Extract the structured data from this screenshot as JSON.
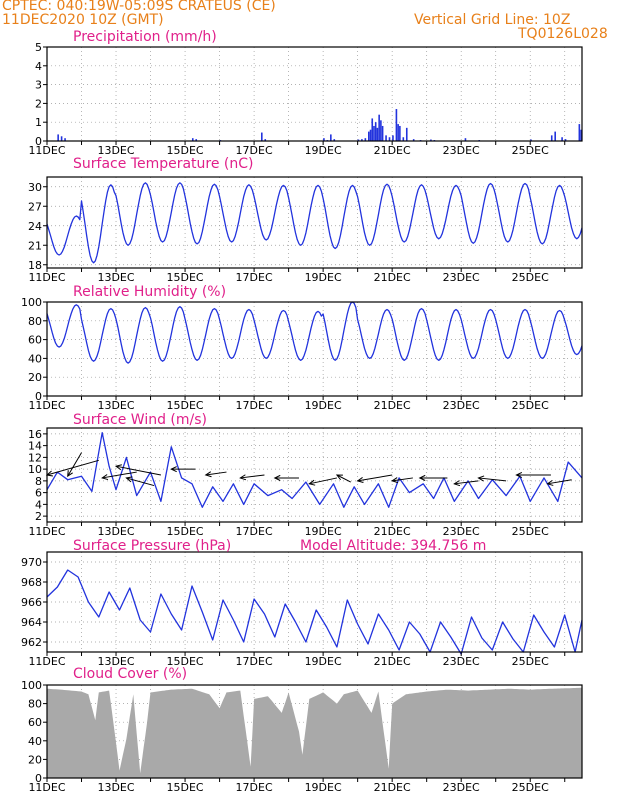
{
  "header": {
    "line1": "CPTEC:  040:19W-05:09S   CRATEUS (CE)",
    "line2": "11DEC2020 10Z (GMT)",
    "grid_note": "Vertical Grid Line: 10Z",
    "code": "TQ0126L028",
    "model_altitude": "Model Altitude: 394.756 m"
  },
  "colors": {
    "header": "#e8801a",
    "title": "#e0208a",
    "series": "#2233dd",
    "cloud": "#a9a9a9",
    "grid": "#999999"
  },
  "chart_data": [
    {
      "type": "bar",
      "title": "Precipitation (mm/h)",
      "ylim": [
        0,
        5
      ],
      "yticks": [
        0,
        1,
        2,
        3,
        4,
        5
      ],
      "x_range_days": [
        11,
        26.5
      ],
      "xticks": [
        "11DEC",
        "13DEC",
        "15DEC",
        "17DEC",
        "19DEC",
        "21DEC",
        "23DEC",
        "25DEC"
      ],
      "bars": [
        [
          11.3,
          0.35
        ],
        [
          11.4,
          0.25
        ],
        [
          11.5,
          0.15
        ],
        [
          15.2,
          0.15
        ],
        [
          15.3,
          0.1
        ],
        [
          16.0,
          0.05
        ],
        [
          17.2,
          0.45
        ],
        [
          17.3,
          0.1
        ],
        [
          19.0,
          0.15
        ],
        [
          19.1,
          0.05
        ],
        [
          19.2,
          0.35
        ],
        [
          19.3,
          0.1
        ],
        [
          20.0,
          0.08
        ],
        [
          20.1,
          0.1
        ],
        [
          20.2,
          0.15
        ],
        [
          20.3,
          0.5
        ],
        [
          20.35,
          0.6
        ],
        [
          20.4,
          1.2
        ],
        [
          20.45,
          0.8
        ],
        [
          20.5,
          1.0
        ],
        [
          20.55,
          0.7
        ],
        [
          20.6,
          1.4
        ],
        [
          20.65,
          1.1
        ],
        [
          20.7,
          0.8
        ],
        [
          20.8,
          0.3
        ],
        [
          20.9,
          0.2
        ],
        [
          21.0,
          0.3
        ],
        [
          21.1,
          1.7
        ],
        [
          21.15,
          0.9
        ],
        [
          21.2,
          0.8
        ],
        [
          21.3,
          0.2
        ],
        [
          21.4,
          0.7
        ],
        [
          21.6,
          0.1
        ],
        [
          21.8,
          0.05
        ],
        [
          22.1,
          0.08
        ],
        [
          22.2,
          0.05
        ],
        [
          23.1,
          0.15
        ],
        [
          23.5,
          0.05
        ],
        [
          25.0,
          0.08
        ],
        [
          25.6,
          0.3
        ],
        [
          25.7,
          0.5
        ],
        [
          25.9,
          0.2
        ],
        [
          26.0,
          0.1
        ],
        [
          26.4,
          0.9
        ],
        [
          26.45,
          0.6
        ]
      ]
    },
    {
      "type": "line",
      "title": "Surface Temperature (nC)",
      "ylim": [
        17.5,
        31.5
      ],
      "yticks": [
        18,
        21,
        24,
        27,
        30
      ],
      "x_range_days": [
        11,
        26.5
      ],
      "xticks": [
        "11DEC",
        "13DEC",
        "15DEC",
        "17DEC",
        "19DEC",
        "21DEC",
        "23DEC",
        "25DEC"
      ],
      "pattern": {
        "mean": 25.4,
        "amplitude": 4.9,
        "min_values_per_day": [
          19.5,
          18.3,
          21.0,
          21.5,
          21.2,
          21.5,
          21.8,
          21.0,
          20.5,
          21.0,
          21.5,
          22.0,
          21.3,
          21.5,
          21.2,
          22.0
        ],
        "max_values_per_day": [
          25.5,
          30.3,
          30.6,
          30.6,
          30.4,
          30.3,
          30.2,
          30.2,
          30.2,
          30.4,
          30.3,
          30.2,
          30.5,
          30.5,
          30.2,
          30.2
        ]
      }
    },
    {
      "type": "line",
      "title": "Relative Humidity (%)",
      "ylim": [
        0,
        100
      ],
      "yticks": [
        0,
        20,
        40,
        60,
        80,
        100
      ],
      "x_range_days": [
        11,
        26.5
      ],
      "xticks": [
        "11DEC",
        "13DEC",
        "15DEC",
        "17DEC",
        "19DEC",
        "21DEC",
        "23DEC",
        "25DEC"
      ],
      "pattern": {
        "max_values_per_day": [
          97,
          93,
          94,
          95,
          93,
          92,
          91,
          90,
          100,
          92,
          93,
          92,
          92,
          92,
          91,
          90
        ],
        "min_values_per_day": [
          52,
          37,
          35,
          37,
          38,
          40,
          40,
          38,
          38,
          40,
          38,
          38,
          40,
          40,
          40,
          44
        ]
      }
    },
    {
      "type": "line",
      "title": "Surface Wind (m/s)",
      "ylim": [
        1,
        17
      ],
      "yticks": [
        2,
        4,
        6,
        8,
        10,
        12,
        14,
        16
      ],
      "x_range_days": [
        11,
        26.5
      ],
      "xticks": [
        "11DEC",
        "13DEC",
        "15DEC",
        "17DEC",
        "19DEC",
        "21DEC",
        "23DEC",
        "25DEC"
      ],
      "speed_points": [
        [
          11.0,
          6.5
        ],
        [
          11.3,
          9.5
        ],
        [
          11.6,
          8.2
        ],
        [
          12.0,
          8.8
        ],
        [
          12.3,
          6.2
        ],
        [
          12.6,
          16.2
        ],
        [
          12.8,
          10.5
        ],
        [
          13.0,
          6.5
        ],
        [
          13.3,
          12.0
        ],
        [
          13.6,
          5.5
        ],
        [
          14.0,
          9.5
        ],
        [
          14.3,
          4.5
        ],
        [
          14.6,
          13.8
        ],
        [
          14.9,
          8.5
        ],
        [
          15.2,
          7.5
        ],
        [
          15.5,
          3.5
        ],
        [
          15.8,
          7.0
        ],
        [
          16.1,
          4.5
        ],
        [
          16.4,
          7.5
        ],
        [
          16.7,
          4.0
        ],
        [
          17.0,
          7.5
        ],
        [
          17.4,
          5.5
        ],
        [
          17.8,
          6.5
        ],
        [
          18.1,
          5.0
        ],
        [
          18.5,
          7.8
        ],
        [
          18.9,
          4.0
        ],
        [
          19.3,
          7.5
        ],
        [
          19.6,
          3.5
        ],
        [
          19.9,
          7.0
        ],
        [
          20.2,
          4.0
        ],
        [
          20.6,
          7.5
        ],
        [
          20.9,
          3.5
        ],
        [
          21.2,
          8.5
        ],
        [
          21.5,
          6.0
        ],
        [
          21.9,
          7.5
        ],
        [
          22.2,
          5.0
        ],
        [
          22.5,
          8.5
        ],
        [
          22.8,
          4.5
        ],
        [
          23.2,
          8.0
        ],
        [
          23.5,
          5.0
        ],
        [
          23.9,
          8.2
        ],
        [
          24.3,
          5.5
        ],
        [
          24.7,
          8.8
        ],
        [
          25.0,
          4.5
        ],
        [
          25.4,
          8.5
        ],
        [
          25.8,
          4.5
        ],
        [
          26.1,
          11.2
        ],
        [
          26.5,
          8.5
        ]
      ],
      "vectors": [
        [
          11.0,
          9.0,
          12.5,
          11.5
        ],
        [
          11.6,
          8.8,
          12.0,
          12.8
        ],
        [
          12.6,
          8.5,
          13.6,
          9.5
        ],
        [
          13.0,
          10.5,
          14.3,
          9.0
        ],
        [
          13.3,
          8.5,
          14.1,
          7.2
        ],
        [
          14.6,
          10.0,
          15.3,
          10.0
        ],
        [
          15.6,
          9.0,
          16.2,
          9.5
        ],
        [
          16.6,
          8.5,
          17.3,
          9.0
        ],
        [
          17.6,
          8.5,
          18.3,
          8.5
        ],
        [
          18.6,
          7.5,
          19.4,
          8.5
        ],
        [
          19.4,
          9.0,
          19.8,
          7.8
        ],
        [
          20.0,
          8.0,
          21.0,
          9.0
        ],
        [
          21.0,
          8.0,
          21.6,
          8.5
        ],
        [
          21.8,
          8.5,
          22.6,
          8.5
        ],
        [
          22.8,
          7.5,
          23.5,
          8.0
        ],
        [
          23.5,
          8.5,
          24.3,
          8.0
        ],
        [
          24.6,
          9.0,
          25.6,
          9.0
        ],
        [
          25.5,
          7.5,
          26.2,
          8.2
        ]
      ]
    },
    {
      "type": "line",
      "title": "Surface Pressure (hPa)",
      "ylim": [
        961,
        971
      ],
      "yticks": [
        962,
        964,
        966,
        968,
        970
      ],
      "x_range_days": [
        11,
        26.5
      ],
      "xticks": [
        "11DEC",
        "13DEC",
        "15DEC",
        "17DEC",
        "19DEC",
        "21DEC",
        "23DEC",
        "25DEC"
      ],
      "points": [
        [
          11.0,
          966.5
        ],
        [
          11.3,
          967.5
        ],
        [
          11.6,
          969.2
        ],
        [
          11.9,
          968.5
        ],
        [
          12.2,
          966.0
        ],
        [
          12.5,
          964.5
        ],
        [
          12.8,
          967.0
        ],
        [
          13.1,
          965.2
        ],
        [
          13.4,
          967.4
        ],
        [
          13.7,
          964.2
        ],
        [
          14.0,
          963.0
        ],
        [
          14.3,
          966.8
        ],
        [
          14.6,
          964.8
        ],
        [
          14.9,
          963.2
        ],
        [
          15.2,
          967.6
        ],
        [
          15.5,
          965.0
        ],
        [
          15.8,
          962.2
        ],
        [
          16.1,
          966.2
        ],
        [
          16.4,
          964.2
        ],
        [
          16.7,
          962.0
        ],
        [
          17.0,
          966.3
        ],
        [
          17.3,
          964.8
        ],
        [
          17.6,
          962.5
        ],
        [
          17.9,
          965.8
        ],
        [
          18.2,
          964.0
        ],
        [
          18.5,
          962.0
        ],
        [
          18.8,
          965.2
        ],
        [
          19.1,
          963.5
        ],
        [
          19.4,
          961.5
        ],
        [
          19.7,
          966.2
        ],
        [
          20.0,
          963.8
        ],
        [
          20.3,
          961.8
        ],
        [
          20.6,
          964.8
        ],
        [
          20.9,
          963.2
        ],
        [
          21.2,
          961.2
        ],
        [
          21.5,
          964.0
        ],
        [
          21.8,
          962.8
        ],
        [
          22.1,
          961.0
        ],
        [
          22.4,
          964.0
        ],
        [
          22.7,
          962.5
        ],
        [
          23.0,
          960.8
        ],
        [
          23.3,
          964.5
        ],
        [
          23.6,
          962.4
        ],
        [
          23.9,
          961.2
        ],
        [
          24.2,
          964.0
        ],
        [
          24.5,
          962.3
        ],
        [
          24.8,
          961.0
        ],
        [
          25.1,
          964.7
        ],
        [
          25.4,
          963.0
        ],
        [
          25.7,
          961.5
        ],
        [
          26.0,
          964.7
        ],
        [
          26.3,
          961.0
        ],
        [
          26.5,
          964.2
        ]
      ]
    },
    {
      "type": "area",
      "title": "Cloud Cover (%)",
      "ylim": [
        0,
        100
      ],
      "yticks": [
        0,
        20,
        40,
        60,
        80,
        100
      ],
      "x_range_days": [
        11,
        26.5
      ],
      "xticks": [
        "11DEC",
        "13DEC",
        "15DEC",
        "17DEC",
        "19DEC",
        "21DEC",
        "23DEC",
        "25DEC"
      ],
      "points": [
        [
          11.0,
          96
        ],
        [
          11.4,
          95
        ],
        [
          12.0,
          93
        ],
        [
          12.2,
          90
        ],
        [
          12.4,
          62
        ],
        [
          12.5,
          92
        ],
        [
          12.8,
          94
        ],
        [
          13.0,
          38
        ],
        [
          13.1,
          8
        ],
        [
          13.3,
          42
        ],
        [
          13.5,
          90
        ],
        [
          13.7,
          5
        ],
        [
          13.9,
          60
        ],
        [
          14.0,
          92
        ],
        [
          14.6,
          95
        ],
        [
          15.2,
          96
        ],
        [
          15.7,
          90
        ],
        [
          16.0,
          75
        ],
        [
          16.2,
          92
        ],
        [
          16.6,
          94
        ],
        [
          16.9,
          12
        ],
        [
          17.0,
          85
        ],
        [
          17.4,
          88
        ],
        [
          17.8,
          70
        ],
        [
          18.0,
          92
        ],
        [
          18.3,
          50
        ],
        [
          18.4,
          25
        ],
        [
          18.6,
          85
        ],
        [
          19.0,
          92
        ],
        [
          19.4,
          80
        ],
        [
          19.6,
          90
        ],
        [
          20.0,
          94
        ],
        [
          20.4,
          70
        ],
        [
          20.6,
          93
        ],
        [
          20.9,
          10
        ],
        [
          21.0,
          80
        ],
        [
          21.4,
          90
        ],
        [
          22.0,
          93
        ],
        [
          22.6,
          95
        ],
        [
          23.2,
          94
        ],
        [
          23.8,
          95
        ],
        [
          24.4,
          96
        ],
        [
          25.0,
          95
        ],
        [
          25.6,
          96
        ],
        [
          26.5,
          97
        ]
      ]
    }
  ]
}
